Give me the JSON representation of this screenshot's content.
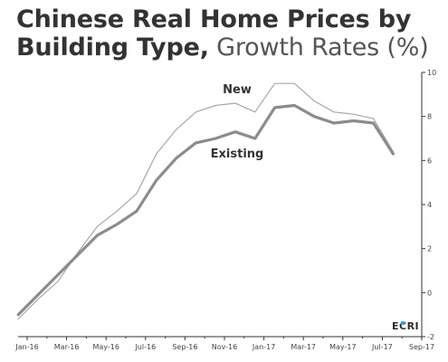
{
  "title": {
    "line1": "Chinese Real Home Prices by",
    "line2_bold": "Building Type,",
    "line2_light": "Growth Rates (%)"
  },
  "brand": "ECRI",
  "colors": {
    "new": "#a8a8a8",
    "existing": "#8c8c8c",
    "axis": "#333333",
    "brand_accent": "#3aa0d8"
  },
  "chart_data": {
    "type": "line",
    "title": "Chinese Real Home Prices by Building Type, Growth Rates (%)",
    "x_tick_labels": [
      "Jan-16",
      "Mar-16",
      "May-16",
      "Jul-16",
      "Sep-16",
      "Nov-16",
      "Jan-17",
      "Mar-17",
      "May-17",
      "Jul-17",
      "Sep-17"
    ],
    "x": [
      "Jan-16",
      "Feb-16",
      "Mar-16",
      "Apr-16",
      "May-16",
      "Jun-16",
      "Jul-16",
      "Aug-16",
      "Sep-16",
      "Oct-16",
      "Nov-16",
      "Dec-16",
      "Jan-17",
      "Feb-17",
      "Mar-17",
      "Apr-17",
      "May-17",
      "Jun-17",
      "Jul-17",
      "Aug-17"
    ],
    "series": [
      {
        "name": "New",
        "values": [
          -1.2,
          -0.3,
          0.5,
          1.8,
          3.0,
          3.7,
          4.5,
          6.3,
          7.4,
          8.2,
          8.5,
          8.6,
          8.2,
          9.5,
          9.5,
          8.7,
          8.2,
          8.1,
          7.9,
          6.4
        ]
      },
      {
        "name": "Existing",
        "values": [
          -1.0,
          -0.1,
          0.8,
          1.7,
          2.6,
          3.1,
          3.7,
          5.1,
          6.1,
          6.8,
          7.0,
          7.3,
          7.0,
          8.4,
          8.5,
          8.0,
          7.7,
          7.8,
          7.7,
          6.3
        ]
      }
    ],
    "y_ticks": [
      "10",
      "8",
      "6",
      "4",
      "2",
      "0",
      "-2"
    ],
    "ylim": [
      -2,
      10
    ],
    "grid": false
  }
}
